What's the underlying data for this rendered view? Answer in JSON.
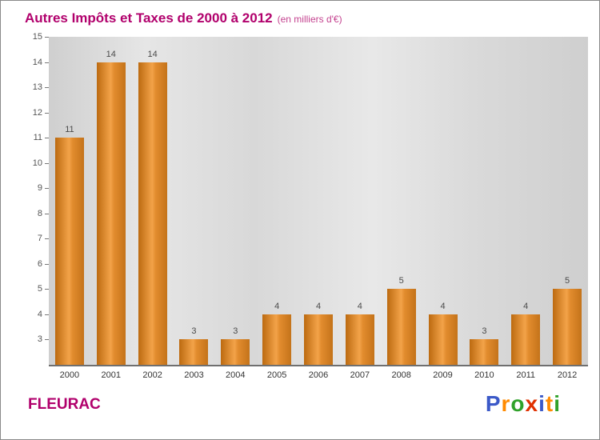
{
  "chart_data": {
    "type": "bar",
    "title": "Autres Impôts et Taxes de 2000 à 2012",
    "subtitle": "(en milliers d'€)",
    "categories": [
      "2000",
      "2001",
      "2002",
      "2003",
      "2004",
      "2005",
      "2006",
      "2007",
      "2008",
      "2009",
      "2010",
      "2011",
      "2012"
    ],
    "values": [
      11,
      14,
      14,
      3,
      3,
      4,
      4,
      4,
      5,
      4,
      3,
      4,
      5
    ],
    "ylim": [
      2,
      15
    ],
    "yticks": [
      3,
      4,
      5,
      6,
      7,
      8,
      9,
      10,
      11,
      12,
      13,
      14,
      15
    ],
    "grid": false,
    "legend": false,
    "xlabel": "",
    "ylabel": ""
  },
  "colors": {
    "title": "#b1006c",
    "subtitle": "#c4428f",
    "location": "#b1006c",
    "bar_dark": "#bc6a10",
    "bar_light": "#f3a349",
    "plot_bg": "#dcdcdc",
    "axis": "#6f6f6f",
    "tick_text": "#555555",
    "value_text": "#4a4a4a"
  },
  "footer": {
    "location": "FLEURAC",
    "logo_letters": [
      {
        "ch": "P",
        "color": "#3b59c8"
      },
      {
        "ch": "r",
        "color": "#ff8a00"
      },
      {
        "ch": "o",
        "color": "#2fa12a"
      },
      {
        "ch": "x",
        "color": "#e03000"
      },
      {
        "ch": "i",
        "color": "#3b59c8"
      },
      {
        "ch": "t",
        "color": "#ff8a00"
      },
      {
        "ch": "i",
        "color": "#2fa12a"
      }
    ]
  }
}
